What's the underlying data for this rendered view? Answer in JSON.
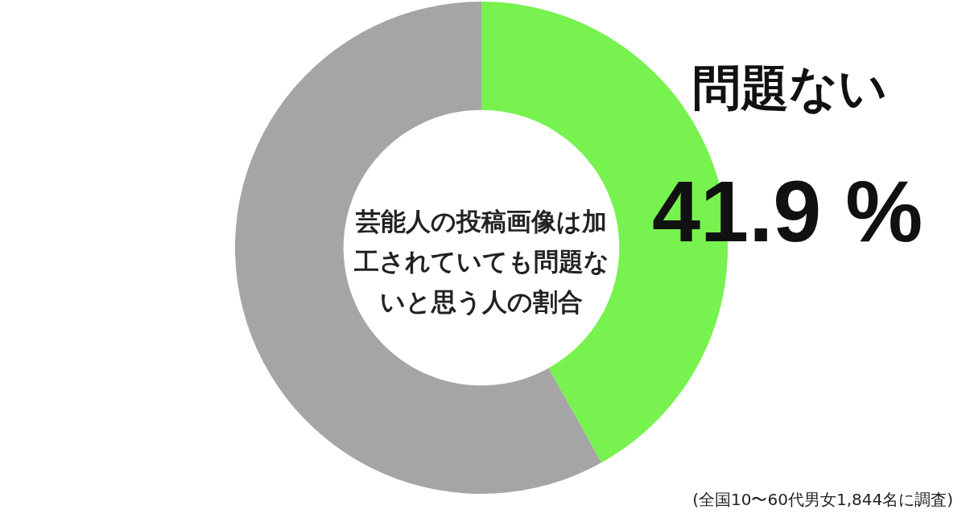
{
  "chart_data": {
    "type": "donut",
    "title": "芸能人の投稿画像は加工されていても問題ないと思う人の割合",
    "categories": [
      "問題ない",
      null
    ],
    "values": [
      41.9,
      58.1
    ],
    "colors": [
      "#77f24f",
      "#a5a5a5"
    ],
    "value_labels": [
      "41.9 %",
      null
    ],
    "legend": false,
    "annotations": [
      "(全国10〜60代男女1,844名に調査)"
    ]
  }
}
